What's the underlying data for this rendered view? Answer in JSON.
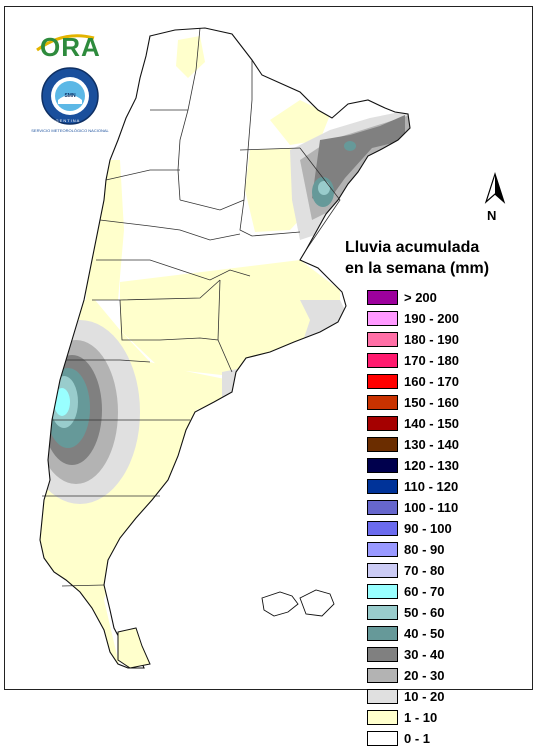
{
  "header": {
    "ora_logo_text": "ORA",
    "smn_logo_text": "SERVICIO METEOROLÓGICO NACIONAL",
    "smn_logo_subtext": "ARGENTINA"
  },
  "compass": {
    "label": "N"
  },
  "legend": {
    "title_line1": "Lluvia acumulada",
    "title_line2": "en la semana (mm)",
    "items": [
      {
        "label": "> 200",
        "color": "#9c009c"
      },
      {
        "label": "190 - 200",
        "color": "#ff99ff"
      },
      {
        "label": "180 - 190",
        "color": "#ff6fa6"
      },
      {
        "label": "170 - 180",
        "color": "#ff1a6e"
      },
      {
        "label": "160 - 170",
        "color": "#ff0000"
      },
      {
        "label": "150 - 160",
        "color": "#c83200"
      },
      {
        "label": "140 - 150",
        "color": "#a50000"
      },
      {
        "label": "130 - 140",
        "color": "#6b2d00"
      },
      {
        "label": "120 - 130",
        "color": "#00004d"
      },
      {
        "label": "110 - 120",
        "color": "#003399"
      },
      {
        "label": "100 - 110",
        "color": "#6666cc"
      },
      {
        "label": "90 - 100",
        "color": "#6b6bee"
      },
      {
        "label": "80 - 90",
        "color": "#9999ff"
      },
      {
        "label": "70 - 80",
        "color": "#ccccf5"
      },
      {
        "label": "60 - 70",
        "color": "#99ffff"
      },
      {
        "label": "50 - 60",
        "color": "#99cccc"
      },
      {
        "label": "40 - 50",
        "color": "#669999"
      },
      {
        "label": "30 - 40",
        "color": "#808080"
      },
      {
        "label": "20 - 30",
        "color": "#b3b3b3"
      },
      {
        "label": "10 - 20",
        "color": "#e0e0e0"
      },
      {
        "label": "1 - 10",
        "color": "#ffffcc"
      },
      {
        "label": "0 - 1",
        "color": "#ffffff"
      }
    ]
  }
}
